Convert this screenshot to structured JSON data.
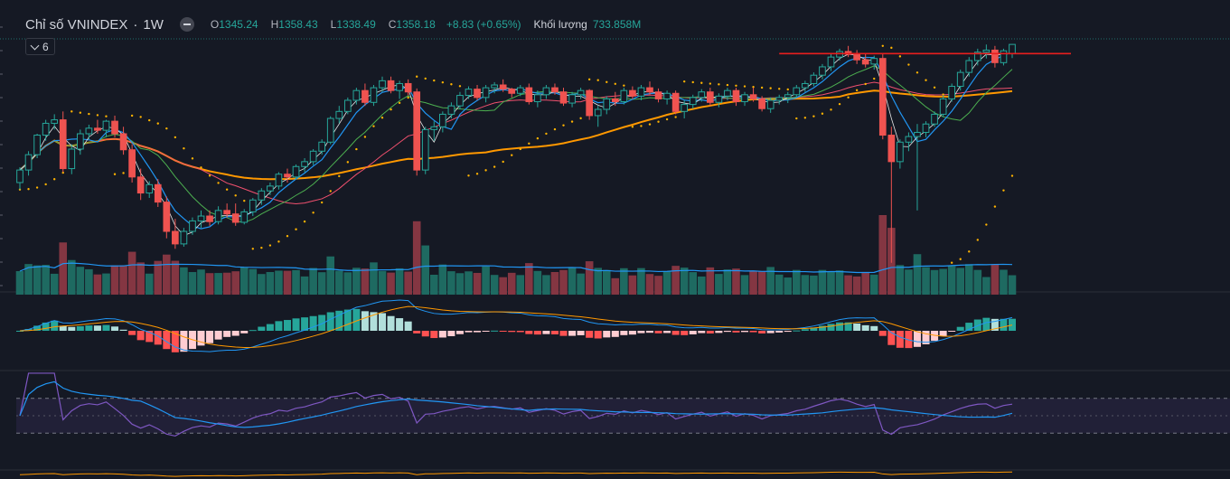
{
  "legend": {
    "symbol": "Chỉ số VNINDEX",
    "separator": "·",
    "interval": "1W",
    "open_label": "O",
    "open": "1345.24",
    "high_label": "H",
    "high": "1358.43",
    "low_label": "L",
    "low": "1338.49",
    "close_label": "C",
    "close": "1358.18",
    "change": "+8.83 (+0.65%)",
    "volume_label": "Khối lượng",
    "volume": "733.858M"
  },
  "indicators_toggle": {
    "count": "6"
  },
  "colors": {
    "background": "#151924",
    "up": "#26a69a",
    "down": "#ef5350",
    "ma_orange": "#ff9800",
    "ma_blue": "#2196f3",
    "ma_red": "#f0506e",
    "ma_green": "#4caf50",
    "sar": "#ffb300",
    "rsi": "#7e57c2",
    "resistance": "#e91e1e"
  },
  "chart_data": {
    "type": "candlestick",
    "timeframe": "1W",
    "price_range": [
      1020,
      1370
    ],
    "candles": [
      [
        1160,
        1182,
        1150,
        1178
      ],
      [
        1178,
        1205,
        1170,
        1200
      ],
      [
        1200,
        1230,
        1195,
        1228
      ],
      [
        1228,
        1250,
        1220,
        1245
      ],
      [
        1245,
        1258,
        1236,
        1250
      ],
      [
        1250,
        1262,
        1175,
        1180
      ],
      [
        1180,
        1215,
        1172,
        1208
      ],
      [
        1208,
        1236,
        1200,
        1230
      ],
      [
        1230,
        1243,
        1222,
        1238
      ],
      [
        1238,
        1250,
        1230,
        1235
      ],
      [
        1235,
        1250,
        1225,
        1248
      ],
      [
        1248,
        1256,
        1225,
        1230
      ],
      [
        1230,
        1240,
        1200,
        1207
      ],
      [
        1207,
        1215,
        1160,
        1168
      ],
      [
        1168,
        1180,
        1135,
        1145
      ],
      [
        1145,
        1162,
        1138,
        1157
      ],
      [
        1157,
        1165,
        1125,
        1132
      ],
      [
        1132,
        1140,
        1080,
        1090
      ],
      [
        1090,
        1108,
        1065,
        1072
      ],
      [
        1072,
        1095,
        1068,
        1090
      ],
      [
        1090,
        1110,
        1085,
        1105
      ],
      [
        1105,
        1120,
        1095,
        1112
      ],
      [
        1112,
        1120,
        1098,
        1104
      ],
      [
        1104,
        1126,
        1100,
        1120
      ],
      [
        1120,
        1130,
        1110,
        1115
      ],
      [
        1115,
        1130,
        1098,
        1103
      ],
      [
        1103,
        1122,
        1100,
        1118
      ],
      [
        1118,
        1138,
        1112,
        1135
      ],
      [
        1135,
        1152,
        1128,
        1148
      ],
      [
        1148,
        1160,
        1142,
        1155
      ],
      [
        1155,
        1175,
        1150,
        1172
      ],
      [
        1172,
        1180,
        1160,
        1168
      ],
      [
        1168,
        1186,
        1164,
        1183
      ],
      [
        1183,
        1195,
        1175,
        1190
      ],
      [
        1190,
        1208,
        1185,
        1205
      ],
      [
        1205,
        1222,
        1200,
        1218
      ],
      [
        1218,
        1255,
        1215,
        1252
      ],
      [
        1252,
        1270,
        1245,
        1262
      ],
      [
        1262,
        1282,
        1258,
        1278
      ],
      [
        1278,
        1296,
        1272,
        1292
      ],
      [
        1292,
        1302,
        1270,
        1275
      ],
      [
        1275,
        1300,
        1270,
        1296
      ],
      [
        1296,
        1312,
        1290,
        1306
      ],
      [
        1306,
        1312,
        1288,
        1292
      ],
      [
        1292,
        1306,
        1280,
        1302
      ],
      [
        1302,
        1308,
        1285,
        1290
      ],
      [
        1290,
        1295,
        1170,
        1178
      ],
      [
        1178,
        1240,
        1172,
        1236
      ],
      [
        1236,
        1248,
        1220,
        1240
      ],
      [
        1240,
        1262,
        1232,
        1258
      ],
      [
        1258,
        1275,
        1252,
        1270
      ],
      [
        1270,
        1290,
        1265,
        1285
      ],
      [
        1285,
        1298,
        1280,
        1294
      ],
      [
        1294,
        1300,
        1278,
        1282
      ],
      [
        1282,
        1300,
        1275,
        1296
      ],
      [
        1296,
        1304,
        1288,
        1300
      ],
      [
        1300,
        1308,
        1290,
        1294
      ],
      [
        1294,
        1296,
        1282,
        1288
      ],
      [
        1288,
        1300,
        1284,
        1296
      ],
      [
        1296,
        1302,
        1272,
        1276
      ],
      [
        1276,
        1292,
        1268,
        1286
      ],
      [
        1286,
        1300,
        1280,
        1296
      ],
      [
        1296,
        1302,
        1286,
        1290
      ],
      [
        1290,
        1296,
        1270,
        1274
      ],
      [
        1274,
        1290,
        1268,
        1286
      ],
      [
        1286,
        1296,
        1280,
        1292
      ],
      [
        1292,
        1294,
        1250,
        1256
      ],
      [
        1256,
        1270,
        1240,
        1265
      ],
      [
        1265,
        1284,
        1258,
        1280
      ],
      [
        1280,
        1290,
        1270,
        1276
      ],
      [
        1276,
        1296,
        1272,
        1292
      ],
      [
        1292,
        1298,
        1280,
        1284
      ],
      [
        1284,
        1300,
        1278,
        1296
      ],
      [
        1296,
        1305,
        1286,
        1290
      ],
      [
        1290,
        1295,
        1275,
        1280
      ],
      [
        1280,
        1292,
        1272,
        1288
      ],
      [
        1288,
        1292,
        1258,
        1262
      ],
      [
        1262,
        1278,
        1252,
        1272
      ],
      [
        1272,
        1286,
        1266,
        1282
      ],
      [
        1282,
        1294,
        1276,
        1290
      ],
      [
        1290,
        1296,
        1270,
        1275
      ],
      [
        1275,
        1288,
        1268,
        1284
      ],
      [
        1284,
        1296,
        1278,
        1292
      ],
      [
        1292,
        1296,
        1270,
        1276
      ],
      [
        1276,
        1290,
        1270,
        1286
      ],
      [
        1286,
        1296,
        1276,
        1280
      ],
      [
        1280,
        1284,
        1262,
        1266
      ],
      [
        1266,
        1282,
        1260,
        1278
      ],
      [
        1278,
        1286,
        1272,
        1282
      ],
      [
        1282,
        1290,
        1274,
        1286
      ],
      [
        1286,
        1300,
        1282,
        1296
      ],
      [
        1296,
        1306,
        1290,
        1302
      ],
      [
        1302,
        1318,
        1298,
        1314
      ],
      [
        1314,
        1330,
        1308,
        1326
      ],
      [
        1326,
        1345,
        1320,
        1340
      ],
      [
        1340,
        1352,
        1335,
        1348
      ],
      [
        1348,
        1356,
        1340,
        1344
      ],
      [
        1344,
        1350,
        1330,
        1336
      ],
      [
        1336,
        1345,
        1325,
        1330
      ],
      [
        1330,
        1342,
        1322,
        1338
      ],
      [
        1338,
        1344,
        1222,
        1228
      ],
      [
        1228,
        1240,
        1045,
        1190
      ],
      [
        1190,
        1222,
        1180,
        1218
      ],
      [
        1218,
        1232,
        1205,
        1226
      ],
      [
        1226,
        1244,
        1120,
        1232
      ],
      [
        1232,
        1248,
        1225,
        1244
      ],
      [
        1244,
        1262,
        1240,
        1258
      ],
      [
        1258,
        1285,
        1254,
        1280
      ],
      [
        1280,
        1302,
        1276,
        1298
      ],
      [
        1298,
        1322,
        1292,
        1318
      ],
      [
        1318,
        1340,
        1312,
        1335
      ],
      [
        1335,
        1352,
        1328,
        1347
      ],
      [
        1347,
        1358,
        1338,
        1350
      ],
      [
        1350,
        1356,
        1325,
        1332
      ],
      [
        1332,
        1352,
        1328,
        1349
      ],
      [
        1345.24,
        1358.43,
        1338.49,
        1358.18
      ]
    ],
    "resistance_level": 1345,
    "volume_pane": {
      "label": "Khối lượng"
    },
    "macd_pane": {},
    "rsi_pane": {
      "upper": 70,
      "lower": 30
    }
  }
}
